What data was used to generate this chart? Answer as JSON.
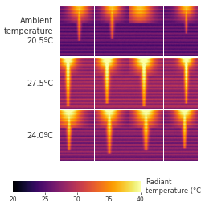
{
  "title_texts": [
    "Ambient\ntemperature\n20.5ºC",
    "27.5ºC",
    "24.0ºC"
  ],
  "colorbar_label": "Radiant\ntemperature (°C)",
  "colorbar_ticks": [
    20,
    25,
    30,
    35,
    40
  ],
  "colorbar_vmin": 20,
  "colorbar_vmax": 40,
  "n_rows": 3,
  "n_cols": 4,
  "background_color": "#ffffff",
  "label_color": "#333333",
  "font_size_row_label": 7.0,
  "font_size_colorbar": 6.0,
  "row_bg_levels": [
    0.28,
    0.42,
    0.36
  ],
  "row_stripe_amp": [
    0.06,
    0.07,
    0.07
  ],
  "row_hot_scale": [
    0.72,
    0.9,
    0.85
  ]
}
